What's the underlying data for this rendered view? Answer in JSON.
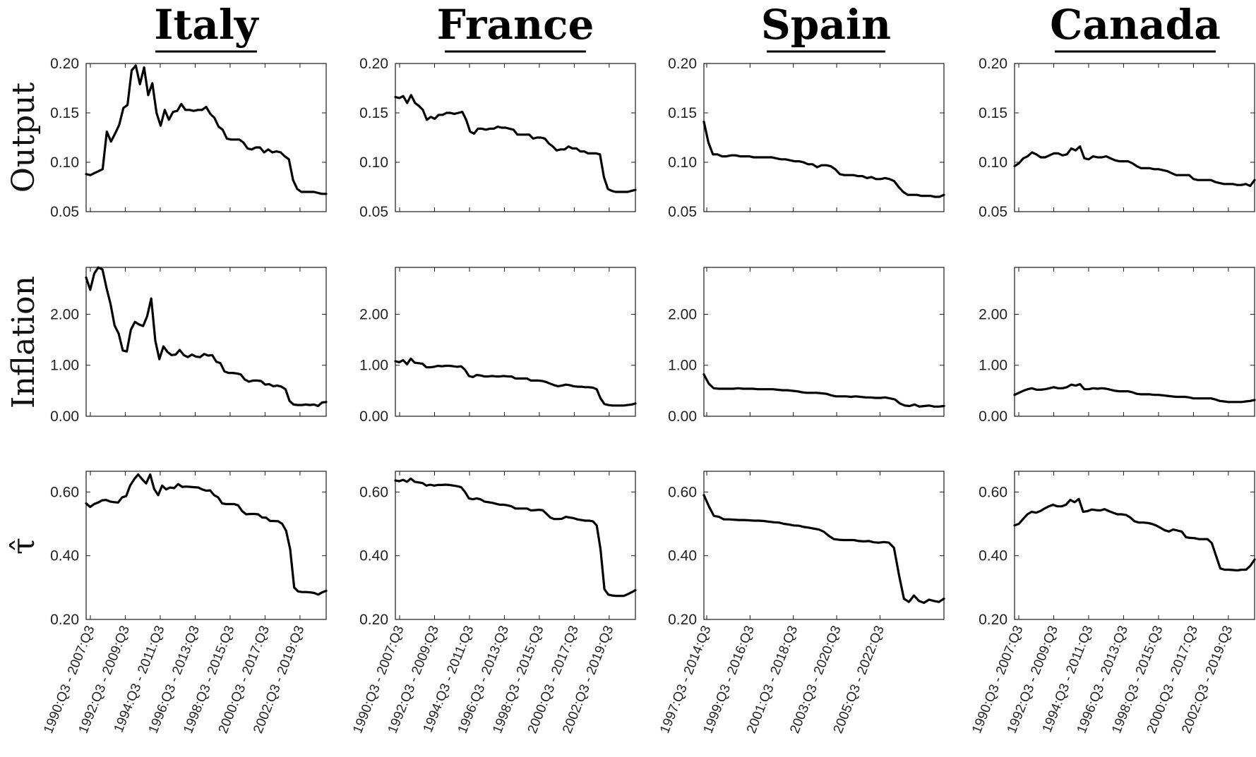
{
  "columns": [
    "Italy",
    "France",
    "Spain",
    "Canada"
  ],
  "row_labels": [
    "Output",
    "Inflation",
    "τ̂"
  ],
  "chart_data": [
    {
      "type": "line",
      "country": "Italy",
      "x_ticks": [
        "1990:Q3 - 2007:Q3",
        "1992:Q3 - 2009:Q3",
        "1994:Q3 - 2011:Q3",
        "1996:Q3 - 2013:Q3",
        "1998:Q3 - 2015:Q3",
        "2000:Q3 - 2017:Q3",
        "2002:Q3 - 2019:Q3"
      ],
      "output": [
        0.088,
        0.087,
        0.089,
        0.091,
        0.093,
        0.131,
        0.121,
        0.129,
        0.138,
        0.155,
        0.158,
        0.193,
        0.198,
        0.179,
        0.196,
        0.168,
        0.18,
        0.15,
        0.137,
        0.153,
        0.143,
        0.151,
        0.152,
        0.159,
        0.153,
        0.153,
        0.152,
        0.153,
        0.153,
        0.156,
        0.149,
        0.145,
        0.136,
        0.133,
        0.124,
        0.123,
        0.123,
        0.123,
        0.12,
        0.114,
        0.113,
        0.115,
        0.115,
        0.11,
        0.113,
        0.11,
        0.111,
        0.11,
        0.106,
        0.103,
        0.082,
        0.073,
        0.07,
        0.07,
        0.07,
        0.07,
        0.069,
        0.068,
        0.068
      ],
      "inflation": [
        2.72,
        2.48,
        2.8,
        2.92,
        2.88,
        2.52,
        2.2,
        1.78,
        1.62,
        1.29,
        1.27,
        1.7,
        1.85,
        1.8,
        1.77,
        1.96,
        2.31,
        1.48,
        1.12,
        1.37,
        1.26,
        1.2,
        1.21,
        1.3,
        1.2,
        1.16,
        1.21,
        1.17,
        1.16,
        1.22,
        1.19,
        1.2,
        1.07,
        1.04,
        0.88,
        0.85,
        0.85,
        0.84,
        0.82,
        0.72,
        0.68,
        0.7,
        0.7,
        0.69,
        0.62,
        0.63,
        0.59,
        0.6,
        0.58,
        0.53,
        0.3,
        0.23,
        0.22,
        0.22,
        0.23,
        0.22,
        0.23,
        0.2,
        0.27,
        0.28
      ],
      "tau": [
        0.564,
        0.553,
        0.562,
        0.567,
        0.574,
        0.575,
        0.57,
        0.568,
        0.567,
        0.583,
        0.587,
        0.62,
        0.64,
        0.655,
        0.64,
        0.627,
        0.655,
        0.61,
        0.59,
        0.62,
        0.608,
        0.614,
        0.612,
        0.625,
        0.616,
        0.617,
        0.616,
        0.615,
        0.614,
        0.608,
        0.604,
        0.605,
        0.59,
        0.583,
        0.564,
        0.562,
        0.562,
        0.562,
        0.558,
        0.54,
        0.53,
        0.531,
        0.531,
        0.53,
        0.52,
        0.519,
        0.509,
        0.509,
        0.508,
        0.5,
        0.478,
        0.42,
        0.3,
        0.288,
        0.286,
        0.286,
        0.285,
        0.283,
        0.278,
        0.285,
        0.29
      ]
    },
    {
      "type": "line",
      "country": "France",
      "x_ticks": [
        "1990:Q3 - 2007:Q3",
        "1992:Q3 - 2009:Q3",
        "1994:Q3 - 2011:Q3",
        "1996:Q3 - 2013:Q3",
        "1998:Q3 - 2015:Q3",
        "2000:Q3 - 2017:Q3",
        "2002:Q3 - 2019:Q3"
      ],
      "output": [
        0.166,
        0.165,
        0.167,
        0.16,
        0.168,
        0.16,
        0.157,
        0.153,
        0.143,
        0.146,
        0.144,
        0.148,
        0.148,
        0.15,
        0.15,
        0.149,
        0.15,
        0.151,
        0.143,
        0.131,
        0.129,
        0.134,
        0.134,
        0.133,
        0.134,
        0.134,
        0.136,
        0.135,
        0.135,
        0.134,
        0.133,
        0.128,
        0.128,
        0.128,
        0.128,
        0.124,
        0.125,
        0.125,
        0.124,
        0.119,
        0.116,
        0.112,
        0.113,
        0.113,
        0.116,
        0.114,
        0.114,
        0.111,
        0.111,
        0.109,
        0.109,
        0.109,
        0.108,
        0.085,
        0.073,
        0.071,
        0.07,
        0.07,
        0.07,
        0.07,
        0.071,
        0.072
      ],
      "inflation": [
        1.08,
        1.06,
        1.1,
        1.02,
        1.13,
        1.05,
        1.04,
        1.03,
        0.96,
        0.96,
        0.97,
        0.99,
        0.98,
        0.99,
        0.99,
        0.98,
        0.97,
        0.98,
        0.91,
        0.79,
        0.77,
        0.81,
        0.8,
        0.78,
        0.78,
        0.79,
        0.78,
        0.78,
        0.79,
        0.78,
        0.78,
        0.74,
        0.74,
        0.74,
        0.74,
        0.7,
        0.7,
        0.7,
        0.69,
        0.67,
        0.64,
        0.61,
        0.59,
        0.6,
        0.62,
        0.61,
        0.59,
        0.58,
        0.58,
        0.57,
        0.57,
        0.56,
        0.53,
        0.35,
        0.24,
        0.22,
        0.21,
        0.21,
        0.21,
        0.21,
        0.22,
        0.23,
        0.25
      ],
      "tau": [
        0.636,
        0.634,
        0.638,
        0.632,
        0.642,
        0.632,
        0.63,
        0.628,
        0.62,
        0.623,
        0.62,
        0.622,
        0.622,
        0.623,
        0.622,
        0.62,
        0.618,
        0.615,
        0.6,
        0.58,
        0.577,
        0.58,
        0.577,
        0.57,
        0.568,
        0.566,
        0.563,
        0.56,
        0.56,
        0.558,
        0.555,
        0.548,
        0.548,
        0.548,
        0.548,
        0.542,
        0.543,
        0.544,
        0.543,
        0.532,
        0.52,
        0.515,
        0.515,
        0.516,
        0.522,
        0.52,
        0.518,
        0.514,
        0.512,
        0.51,
        0.51,
        0.508,
        0.495,
        0.42,
        0.295,
        0.278,
        0.275,
        0.274,
        0.274,
        0.274,
        0.279,
        0.285,
        0.292
      ]
    },
    {
      "type": "line",
      "country": "Spain",
      "x_ticks": [
        "1997:Q3 - 2014:Q3",
        "1999:Q3 - 2016:Q3",
        "2001:Q3 - 2018:Q3",
        "2003:Q3 - 2020:Q3",
        "2005:Q3 - 2022:Q3"
      ],
      "output": [
        0.141,
        0.12,
        0.108,
        0.108,
        0.106,
        0.106,
        0.107,
        0.107,
        0.106,
        0.106,
        0.106,
        0.105,
        0.105,
        0.105,
        0.105,
        0.105,
        0.104,
        0.103,
        0.103,
        0.102,
        0.101,
        0.101,
        0.1,
        0.098,
        0.098,
        0.095,
        0.097,
        0.097,
        0.096,
        0.093,
        0.088,
        0.087,
        0.087,
        0.087,
        0.086,
        0.086,
        0.084,
        0.085,
        0.083,
        0.083,
        0.084,
        0.083,
        0.081,
        0.075,
        0.07,
        0.067,
        0.067,
        0.067,
        0.066,
        0.066,
        0.066,
        0.065,
        0.065,
        0.067
      ],
      "inflation": [
        0.82,
        0.64,
        0.55,
        0.54,
        0.54,
        0.54,
        0.54,
        0.55,
        0.54,
        0.54,
        0.54,
        0.53,
        0.53,
        0.53,
        0.53,
        0.52,
        0.51,
        0.51,
        0.5,
        0.49,
        0.47,
        0.46,
        0.46,
        0.46,
        0.45,
        0.44,
        0.41,
        0.39,
        0.39,
        0.39,
        0.38,
        0.39,
        0.38,
        0.37,
        0.37,
        0.36,
        0.36,
        0.37,
        0.35,
        0.33,
        0.25,
        0.21,
        0.2,
        0.23,
        0.19,
        0.2,
        0.21,
        0.19,
        0.19,
        0.2
      ],
      "tau": [
        0.59,
        0.555,
        0.525,
        0.522,
        0.514,
        0.514,
        0.513,
        0.512,
        0.512,
        0.511,
        0.51,
        0.51,
        0.509,
        0.507,
        0.505,
        0.504,
        0.5,
        0.498,
        0.495,
        0.494,
        0.49,
        0.488,
        0.485,
        0.482,
        0.475,
        0.462,
        0.452,
        0.45,
        0.449,
        0.449,
        0.449,
        0.446,
        0.445,
        0.446,
        0.442,
        0.441,
        0.443,
        0.441,
        0.425,
        0.34,
        0.265,
        0.255,
        0.275,
        0.258,
        0.252,
        0.262,
        0.258,
        0.255,
        0.265
      ]
    },
    {
      "type": "line",
      "country": "Canada",
      "x_ticks": [
        "1990:Q3 - 2007:Q3",
        "1992:Q3 - 2009:Q3",
        "1994:Q3 - 2011:Q3",
        "1996:Q3 - 2013:Q3",
        "1998:Q3 - 2015:Q3",
        "2000:Q3 - 2017:Q3",
        "2002:Q3 - 2019:Q3"
      ],
      "output": [
        0.096,
        0.099,
        0.104,
        0.106,
        0.11,
        0.108,
        0.105,
        0.105,
        0.107,
        0.109,
        0.109,
        0.107,
        0.108,
        0.114,
        0.112,
        0.116,
        0.104,
        0.103,
        0.106,
        0.105,
        0.105,
        0.106,
        0.104,
        0.102,
        0.101,
        0.101,
        0.101,
        0.099,
        0.096,
        0.094,
        0.094,
        0.094,
        0.093,
        0.093,
        0.092,
        0.091,
        0.089,
        0.087,
        0.087,
        0.087,
        0.087,
        0.083,
        0.082,
        0.082,
        0.082,
        0.082,
        0.08,
        0.079,
        0.078,
        0.078,
        0.078,
        0.077,
        0.077,
        0.078,
        0.076,
        0.082
      ],
      "inflation": [
        0.42,
        0.46,
        0.5,
        0.53,
        0.55,
        0.52,
        0.52,
        0.53,
        0.55,
        0.57,
        0.55,
        0.55,
        0.57,
        0.62,
        0.6,
        0.63,
        0.53,
        0.53,
        0.55,
        0.54,
        0.55,
        0.54,
        0.52,
        0.5,
        0.49,
        0.49,
        0.49,
        0.47,
        0.44,
        0.43,
        0.43,
        0.43,
        0.42,
        0.42,
        0.41,
        0.4,
        0.39,
        0.38,
        0.38,
        0.38,
        0.37,
        0.35,
        0.35,
        0.35,
        0.35,
        0.35,
        0.33,
        0.3,
        0.29,
        0.28,
        0.28,
        0.28,
        0.28,
        0.29,
        0.3,
        0.32
      ],
      "tau": [
        0.495,
        0.5,
        0.515,
        0.53,
        0.538,
        0.535,
        0.54,
        0.548,
        0.555,
        0.56,
        0.555,
        0.555,
        0.56,
        0.575,
        0.568,
        0.578,
        0.538,
        0.54,
        0.545,
        0.543,
        0.542,
        0.546,
        0.54,
        0.535,
        0.53,
        0.53,
        0.528,
        0.52,
        0.508,
        0.504,
        0.504,
        0.503,
        0.5,
        0.495,
        0.488,
        0.48,
        0.476,
        0.482,
        0.479,
        0.476,
        0.458,
        0.456,
        0.455,
        0.452,
        0.452,
        0.452,
        0.44,
        0.4,
        0.36,
        0.356,
        0.356,
        0.355,
        0.354,
        0.356,
        0.356,
        0.368,
        0.388
      ]
    }
  ],
  "y_axes": {
    "output": {
      "ticks": [
        "0.05",
        "0.10",
        "0.15",
        "0.20"
      ],
      "min": 0.05,
      "max": 0.2
    },
    "inflation": {
      "ticks": [
        "0.00",
        "1.00",
        "2.00"
      ],
      "min": 0.0,
      "max": 2.92
    },
    "tau": {
      "ticks": [
        "0.20",
        "0.40",
        "0.60"
      ],
      "min": 0.2,
      "max": 0.665
    }
  },
  "style": {
    "line_color": "#000000",
    "axis_color": "#1a1a1a"
  }
}
